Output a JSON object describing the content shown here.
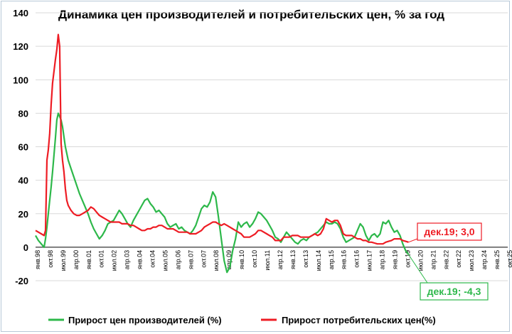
{
  "chart_data": {
    "type": "line",
    "title": "Динамика цен производителей и потребительских цен, % за год",
    "ylim": [
      -20,
      140
    ],
    "y_ticks": [
      "-20",
      "0",
      "20",
      "40",
      "60",
      "80",
      "100",
      "120",
      "140"
    ],
    "x_tick_labels": [
      "янв.98",
      "окт.98",
      "июл.99",
      "апр.00",
      "янв.01",
      "окт.01",
      "июл.02",
      "апр.03",
      "янв.04",
      "окт.04",
      "июл.05",
      "апр.06",
      "янв.07",
      "окт.07",
      "июл.08",
      "апр.09",
      "янв.10",
      "окт.10",
      "июл.11",
      "апр.12",
      "янв.13",
      "окт.13",
      "июл.14",
      "апр.15",
      "янв.16",
      "окт.16",
      "июл.17",
      "апр.18",
      "янв.19",
      "окт.19",
      "июл.20",
      "апр.21",
      "янв.22",
      "окт.22",
      "июл.23",
      "апр.24",
      "янв.25",
      "окт.25"
    ],
    "x_start": "1998-01",
    "x_end": "2025-10",
    "grid": {
      "horizontal": true,
      "vertical": false
    },
    "legend_position": "bottom",
    "series": [
      {
        "name": "Прирост цен производителей (%)",
        "color": "#2db84a",
        "points": [
          [
            "1998-01",
            7
          ],
          [
            "1998-03",
            4
          ],
          [
            "1998-05",
            2
          ],
          [
            "1998-07",
            0
          ],
          [
            "1998-08",
            5
          ],
          [
            "1998-09",
            12
          ],
          [
            "1998-10",
            20
          ],
          [
            "1998-11",
            28
          ],
          [
            "1998-12",
            36
          ],
          [
            "1999-01",
            45
          ],
          [
            "1999-02",
            55
          ],
          [
            "1999-03",
            65
          ],
          [
            "1999-04",
            76
          ],
          [
            "1999-05",
            80
          ],
          [
            "1999-06",
            78
          ],
          [
            "1999-07",
            76
          ],
          [
            "1999-08",
            72
          ],
          [
            "1999-09",
            66
          ],
          [
            "1999-10",
            60
          ],
          [
            "1999-11",
            56
          ],
          [
            "1999-12",
            52
          ],
          [
            "2000-02",
            47
          ],
          [
            "2000-04",
            42
          ],
          [
            "2000-06",
            37
          ],
          [
            "2000-08",
            32
          ],
          [
            "2000-10",
            28
          ],
          [
            "2000-12",
            24
          ],
          [
            "2001-02",
            20
          ],
          [
            "2001-04",
            15
          ],
          [
            "2001-06",
            11
          ],
          [
            "2001-08",
            8
          ],
          [
            "2001-10",
            5
          ],
          [
            "2001-12",
            7
          ],
          [
            "2002-02",
            10
          ],
          [
            "2002-04",
            14
          ],
          [
            "2002-06",
            15
          ],
          [
            "2002-08",
            16
          ],
          [
            "2002-10",
            19
          ],
          [
            "2002-12",
            22
          ],
          [
            "2003-02",
            20
          ],
          [
            "2003-04",
            17
          ],
          [
            "2003-06",
            14
          ],
          [
            "2003-08",
            12
          ],
          [
            "2003-10",
            16
          ],
          [
            "2003-12",
            19
          ],
          [
            "2004-02",
            22
          ],
          [
            "2004-04",
            25
          ],
          [
            "2004-06",
            28
          ],
          [
            "2004-08",
            29
          ],
          [
            "2004-10",
            26
          ],
          [
            "2004-12",
            24
          ],
          [
            "2005-02",
            21
          ],
          [
            "2005-04",
            22
          ],
          [
            "2005-06",
            20
          ],
          [
            "2005-08",
            18
          ],
          [
            "2005-10",
            14
          ],
          [
            "2005-12",
            12
          ],
          [
            "2006-02",
            13
          ],
          [
            "2006-04",
            14
          ],
          [
            "2006-06",
            11
          ],
          [
            "2006-08",
            12
          ],
          [
            "2006-10",
            10
          ],
          [
            "2006-12",
            9
          ],
          [
            "2007-02",
            8
          ],
          [
            "2007-04",
            10
          ],
          [
            "2007-06",
            13
          ],
          [
            "2007-08",
            18
          ],
          [
            "2007-10",
            23
          ],
          [
            "2007-12",
            25
          ],
          [
            "2008-02",
            24
          ],
          [
            "2008-04",
            27
          ],
          [
            "2008-06",
            33
          ],
          [
            "2008-08",
            30
          ],
          [
            "2008-10",
            18
          ],
          [
            "2008-12",
            5
          ],
          [
            "2009-02",
            -8
          ],
          [
            "2009-04",
            -15
          ],
          [
            "2009-06",
            -12
          ],
          [
            "2009-08",
            -2
          ],
          [
            "2009-10",
            5
          ],
          [
            "2009-12",
            15
          ],
          [
            "2010-02",
            12
          ],
          [
            "2010-04",
            14
          ],
          [
            "2010-06",
            15
          ],
          [
            "2010-08",
            12
          ],
          [
            "2010-10",
            14
          ],
          [
            "2010-12",
            17
          ],
          [
            "2011-02",
            21
          ],
          [
            "2011-04",
            20
          ],
          [
            "2011-06",
            18
          ],
          [
            "2011-08",
            16
          ],
          [
            "2011-10",
            13
          ],
          [
            "2011-12",
            10
          ],
          [
            "2012-02",
            6
          ],
          [
            "2012-04",
            5
          ],
          [
            "2012-06",
            3
          ],
          [
            "2012-08",
            6
          ],
          [
            "2012-10",
            9
          ],
          [
            "2012-12",
            7
          ],
          [
            "2013-02",
            5
          ],
          [
            "2013-04",
            3
          ],
          [
            "2013-06",
            2
          ],
          [
            "2013-08",
            4
          ],
          [
            "2013-10",
            5
          ],
          [
            "2013-12",
            4
          ],
          [
            "2014-02",
            6
          ],
          [
            "2014-04",
            7
          ],
          [
            "2014-06",
            8
          ],
          [
            "2014-08",
            9
          ],
          [
            "2014-10",
            11
          ],
          [
            "2014-12",
            13
          ],
          [
            "2015-02",
            15
          ],
          [
            "2015-04",
            14
          ],
          [
            "2015-06",
            14
          ],
          [
            "2015-08",
            15
          ],
          [
            "2015-10",
            14
          ],
          [
            "2015-12",
            11
          ],
          [
            "2016-02",
            6
          ],
          [
            "2016-04",
            3
          ],
          [
            "2016-06",
            4
          ],
          [
            "2016-08",
            5
          ],
          [
            "2016-10",
            6
          ],
          [
            "2016-12",
            10
          ],
          [
            "2017-02",
            14
          ],
          [
            "2017-04",
            12
          ],
          [
            "2017-06",
            7
          ],
          [
            "2017-08",
            4
          ],
          [
            "2017-10",
            7
          ],
          [
            "2017-12",
            8
          ],
          [
            "2018-02",
            6
          ],
          [
            "2018-04",
            8
          ],
          [
            "2018-06",
            15
          ],
          [
            "2018-08",
            14
          ],
          [
            "2018-10",
            16
          ],
          [
            "2018-12",
            12
          ],
          [
            "2019-02",
            9
          ],
          [
            "2019-04",
            10
          ],
          [
            "2019-06",
            7
          ],
          [
            "2019-08",
            2
          ],
          [
            "2019-10",
            -2
          ],
          [
            "2019-12",
            -4.3
          ]
        ]
      },
      {
        "name": "Прирост потребительских цен(%)",
        "color": "#ee1c24",
        "points": [
          [
            "1998-01",
            10
          ],
          [
            "1998-03",
            9
          ],
          [
            "1998-05",
            8
          ],
          [
            "1998-07",
            7
          ],
          [
            "1998-08",
            10
          ],
          [
            "1998-09",
            52
          ],
          [
            "1998-10",
            58
          ],
          [
            "1998-11",
            68
          ],
          [
            "1998-12",
            85
          ],
          [
            "1999-01",
            98
          ],
          [
            "1999-02",
            105
          ],
          [
            "1999-03",
            112
          ],
          [
            "1999-04",
            118
          ],
          [
            "1999-05",
            127
          ],
          [
            "1999-06",
            120
          ],
          [
            "1999-07",
            62
          ],
          [
            "1999-08",
            52
          ],
          [
            "1999-09",
            45
          ],
          [
            "1999-10",
            35
          ],
          [
            "1999-11",
            28
          ],
          [
            "1999-12",
            25
          ],
          [
            "2000-02",
            22
          ],
          [
            "2000-04",
            20
          ],
          [
            "2000-06",
            19
          ],
          [
            "2000-08",
            19
          ],
          [
            "2000-10",
            20
          ],
          [
            "2000-12",
            21
          ],
          [
            "2001-02",
            22
          ],
          [
            "2001-04",
            24
          ],
          [
            "2001-06",
            23
          ],
          [
            "2001-08",
            21
          ],
          [
            "2001-10",
            19
          ],
          [
            "2001-12",
            18
          ],
          [
            "2002-02",
            17
          ],
          [
            "2002-04",
            16
          ],
          [
            "2002-06",
            15
          ],
          [
            "2002-08",
            15
          ],
          [
            "2002-10",
            15
          ],
          [
            "2002-12",
            15
          ],
          [
            "2003-02",
            14
          ],
          [
            "2003-04",
            14
          ],
          [
            "2003-06",
            14
          ],
          [
            "2003-08",
            13
          ],
          [
            "2003-10",
            13
          ],
          [
            "2003-12",
            12
          ],
          [
            "2004-02",
            11
          ],
          [
            "2004-04",
            10
          ],
          [
            "2004-06",
            10
          ],
          [
            "2004-08",
            11
          ],
          [
            "2004-10",
            11
          ],
          [
            "2004-12",
            12
          ],
          [
            "2005-02",
            12
          ],
          [
            "2005-04",
            13
          ],
          [
            "2005-06",
            13
          ],
          [
            "2005-08",
            12
          ],
          [
            "2005-10",
            11
          ],
          [
            "2005-12",
            11
          ],
          [
            "2006-02",
            11
          ],
          [
            "2006-04",
            10
          ],
          [
            "2006-06",
            9
          ],
          [
            "2006-08",
            9
          ],
          [
            "2006-10",
            9
          ],
          [
            "2006-12",
            9
          ],
          [
            "2007-02",
            8
          ],
          [
            "2007-04",
            8
          ],
          [
            "2007-06",
            8
          ],
          [
            "2007-08",
            9
          ],
          [
            "2007-10",
            10
          ],
          [
            "2007-12",
            12
          ],
          [
            "2008-02",
            13
          ],
          [
            "2008-04",
            14
          ],
          [
            "2008-06",
            15
          ],
          [
            "2008-08",
            15
          ],
          [
            "2008-10",
            14
          ],
          [
            "2008-12",
            13
          ],
          [
            "2009-02",
            14
          ],
          [
            "2009-04",
            13
          ],
          [
            "2009-06",
            12
          ],
          [
            "2009-08",
            11
          ],
          [
            "2009-10",
            10
          ],
          [
            "2009-12",
            9
          ],
          [
            "2010-02",
            8
          ],
          [
            "2010-04",
            6
          ],
          [
            "2010-06",
            6
          ],
          [
            "2010-08",
            6
          ],
          [
            "2010-10",
            7
          ],
          [
            "2010-12",
            8
          ],
          [
            "2011-02",
            10
          ],
          [
            "2011-04",
            10
          ],
          [
            "2011-06",
            9
          ],
          [
            "2011-08",
            8
          ],
          [
            "2011-10",
            7
          ],
          [
            "2011-12",
            6
          ],
          [
            "2012-02",
            4
          ],
          [
            "2012-04",
            4
          ],
          [
            "2012-06",
            4
          ],
          [
            "2012-08",
            6
          ],
          [
            "2012-10",
            6
          ],
          [
            "2012-12",
            6
          ],
          [
            "2013-02",
            7
          ],
          [
            "2013-04",
            7
          ],
          [
            "2013-06",
            7
          ],
          [
            "2013-08",
            6
          ],
          [
            "2013-10",
            6
          ],
          [
            "2013-12",
            6
          ],
          [
            "2014-02",
            6
          ],
          [
            "2014-04",
            7
          ],
          [
            "2014-06",
            8
          ],
          [
            "2014-08",
            7
          ],
          [
            "2014-10",
            8
          ],
          [
            "2014-12",
            11
          ],
          [
            "2015-02",
            17
          ],
          [
            "2015-04",
            16
          ],
          [
            "2015-06",
            15
          ],
          [
            "2015-08",
            16
          ],
          [
            "2015-10",
            16
          ],
          [
            "2015-12",
            13
          ],
          [
            "2016-02",
            8
          ],
          [
            "2016-04",
            7
          ],
          [
            "2016-06",
            7
          ],
          [
            "2016-08",
            7
          ],
          [
            "2016-10",
            6
          ],
          [
            "2016-12",
            5
          ],
          [
            "2017-02",
            5
          ],
          [
            "2017-04",
            4
          ],
          [
            "2017-06",
            4
          ],
          [
            "2017-08",
            3
          ],
          [
            "2017-10",
            3
          ],
          [
            "2017-12",
            2.5
          ],
          [
            "2018-02",
            2
          ],
          [
            "2018-04",
            2
          ],
          [
            "2018-06",
            2
          ],
          [
            "2018-08",
            3
          ],
          [
            "2018-10",
            3.5
          ],
          [
            "2018-12",
            4
          ],
          [
            "2019-02",
            5
          ],
          [
            "2019-04",
            5
          ],
          [
            "2019-06",
            5
          ],
          [
            "2019-08",
            4
          ],
          [
            "2019-10",
            3.5
          ],
          [
            "2019-12",
            3.0
          ]
        ]
      }
    ],
    "annotations": [
      {
        "text": "дек.19; 3,0",
        "x": "2019-12",
        "y": 3.0,
        "color": "#ee1c24",
        "position": "upper-right"
      },
      {
        "text": "дек.19; -4,3",
        "x": "2019-12",
        "y": -4.3,
        "color": "#2db84a",
        "position": "lower-right"
      }
    ],
    "colors": {
      "grid": "#d9d9d9",
      "axis": "#000000",
      "frame": "#b8c8d8"
    }
  }
}
